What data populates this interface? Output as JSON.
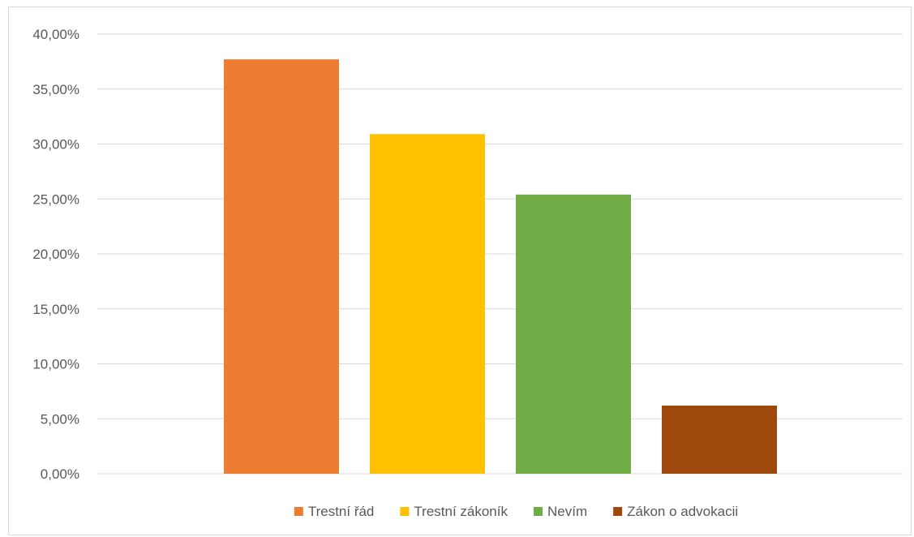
{
  "chart_data": {
    "type": "bar",
    "title": "",
    "xlabel": "",
    "ylabel": "",
    "categories": [
      "Trestní řád",
      "Trestní zákoník",
      "Nevím",
      "Zákon o advokacii"
    ],
    "values": [
      37.7,
      30.9,
      25.4,
      6.2
    ],
    "value_unit": "%",
    "colors": [
      "#ed7d31",
      "#ffc000",
      "#70ad47",
      "#9e480e"
    ],
    "ylim": [
      0,
      40
    ],
    "y_ticks": [
      "0,00%",
      "5,00%",
      "10,00%",
      "15,00%",
      "20,00%",
      "25,00%",
      "30,00%",
      "35,00%",
      "40,00%"
    ],
    "y_tick_values": [
      0,
      5,
      10,
      15,
      20,
      25,
      30,
      35,
      40
    ],
    "grid": true,
    "legend": {
      "position": "bottom",
      "entries": [
        "Trestní řád",
        "Trestní zákoník",
        "Nevím",
        "Zákon o advokacii"
      ]
    }
  }
}
